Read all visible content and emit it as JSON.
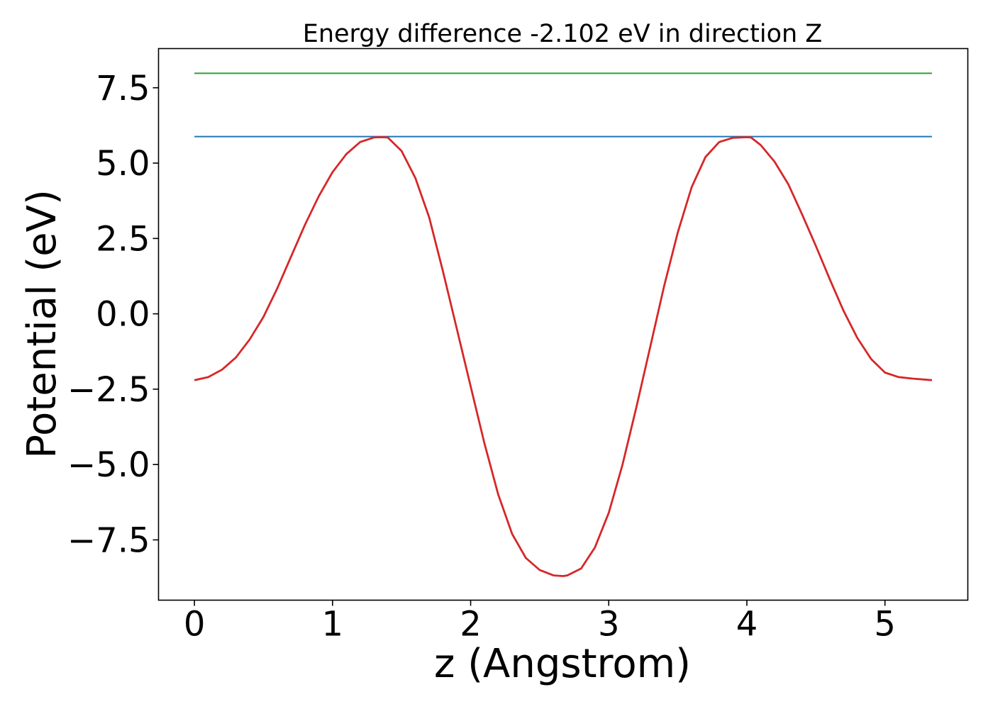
{
  "chart_data": {
    "type": "line",
    "title": "Energy difference -2.102 eV in direction Z",
    "xlabel": "z (Angstrom)",
    "ylabel": "Potential (eV)",
    "xlim": [
      -0.26,
      5.6
    ],
    "ylim": [
      -9.5,
      8.8
    ],
    "xticks": [
      0,
      1,
      2,
      3,
      4,
      5
    ],
    "xtick_labels": [
      "0",
      "1",
      "2",
      "3",
      "4",
      "5"
    ],
    "yticks": [
      -7.5,
      -5.0,
      -2.5,
      0.0,
      2.5,
      5.0,
      7.5
    ],
    "ytick_labels": [
      "−7.5",
      "−5.0",
      "−2.5",
      "0.0",
      "2.5",
      "5.0",
      "7.5"
    ],
    "grid": false,
    "series": [
      {
        "color": "#2ca02c",
        "style": "horizontal",
        "x": [
          0.0,
          5.34
        ],
        "y": [
          7.98,
          7.98
        ]
      },
      {
        "color": "#1f77b4",
        "style": "horizontal",
        "x": [
          0.0,
          5.34
        ],
        "y": [
          5.88,
          5.88
        ]
      },
      {
        "color": "#d62728",
        "style": "curve",
        "x": [
          0.0,
          0.1,
          0.2,
          0.3,
          0.4,
          0.5,
          0.6,
          0.7,
          0.8,
          0.9,
          1.0,
          1.1,
          1.2,
          1.3,
          1.35,
          1.4,
          1.5,
          1.6,
          1.7,
          1.8,
          1.9,
          2.0,
          2.1,
          2.2,
          2.3,
          2.4,
          2.5,
          2.6,
          2.67,
          2.7,
          2.8,
          2.9,
          3.0,
          3.1,
          3.2,
          3.3,
          3.4,
          3.5,
          3.6,
          3.7,
          3.8,
          3.9,
          4.0,
          4.03,
          4.1,
          4.2,
          4.3,
          4.4,
          4.5,
          4.6,
          4.7,
          4.8,
          4.9,
          5.0,
          5.1,
          5.2,
          5.34
        ],
        "y": [
          -2.2,
          -2.1,
          -1.85,
          -1.45,
          -0.85,
          -0.1,
          0.85,
          1.9,
          2.95,
          3.9,
          4.7,
          5.3,
          5.7,
          5.85,
          5.86,
          5.85,
          5.4,
          4.5,
          3.2,
          1.4,
          -0.5,
          -2.4,
          -4.3,
          -6.0,
          -7.3,
          -8.1,
          -8.5,
          -8.68,
          -8.7,
          -8.68,
          -8.45,
          -7.75,
          -6.6,
          -5.0,
          -3.1,
          -1.1,
          0.9,
          2.7,
          4.2,
          5.2,
          5.7,
          5.84,
          5.86,
          5.85,
          5.6,
          5.05,
          4.3,
          3.3,
          2.25,
          1.15,
          0.1,
          -0.8,
          -1.5,
          -1.95,
          -2.1,
          -2.15,
          -2.2
        ]
      }
    ]
  }
}
